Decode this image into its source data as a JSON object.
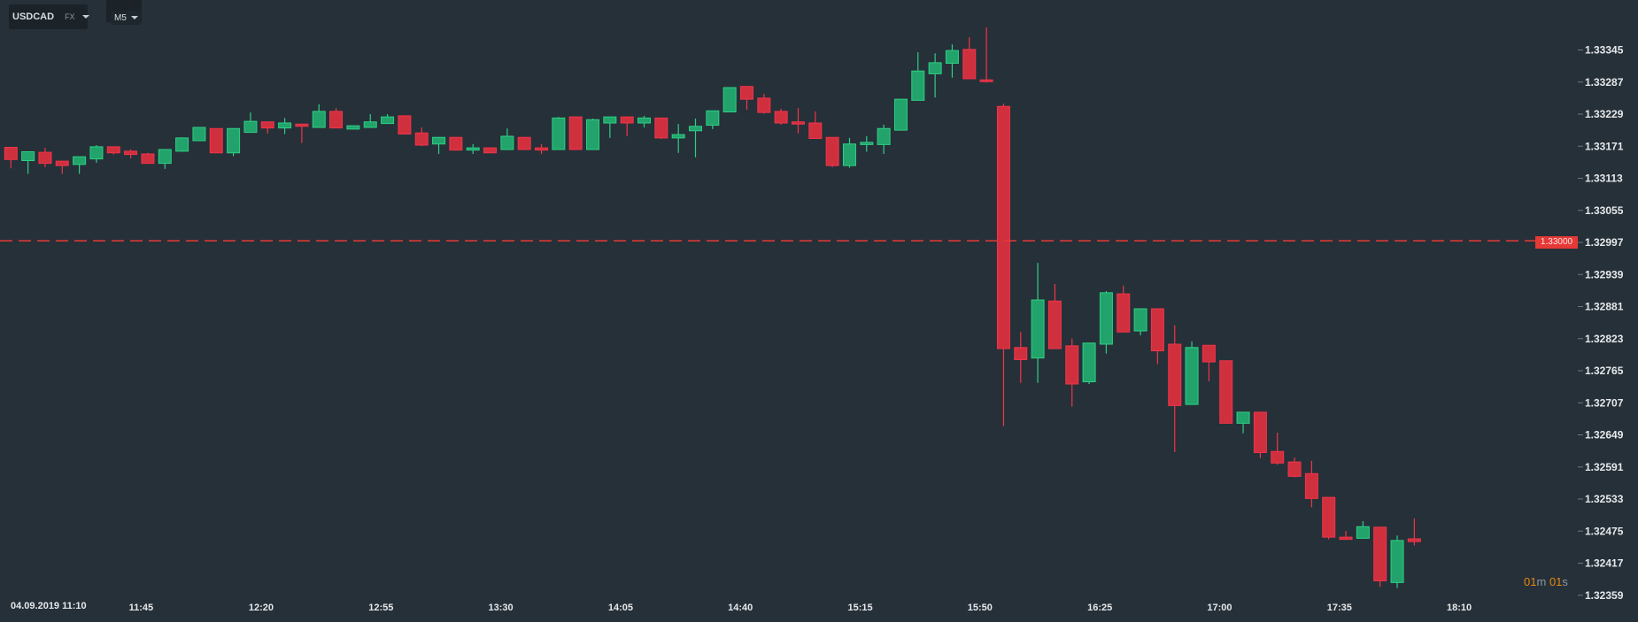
{
  "toolbar": {
    "symbol": "USDCAD",
    "symbol_type": "FX",
    "timeframe": "M5"
  },
  "current_price_tag": "1.33000",
  "timer": {
    "minutes": "01",
    "minutes_unit": "m",
    "seconds": "01",
    "seconds_unit": "s"
  },
  "date_label": "04.09.2019 11:10",
  "colors": {
    "background": "#263038",
    "up": "#22a36b",
    "down": "#d0303e",
    "price_line": "#e53935",
    "timer": "#e8890c"
  },
  "chart_data": {
    "type": "candlestick",
    "xlabel": "",
    "ylabel": "",
    "grid": false,
    "ylim": [
      1.3233,
      1.3343
    ],
    "yticks": [
      "1.33345",
      "1.33287",
      "1.33229",
      "1.33171",
      "1.33113",
      "1.33055",
      "1.32997",
      "1.32939",
      "1.32881",
      "1.32823",
      "1.32765",
      "1.32707",
      "1.32649",
      "1.32591",
      "1.32533",
      "1.32475",
      "1.32417",
      "1.32359"
    ],
    "xticks": [
      {
        "time": "11:45",
        "label": "11:45"
      },
      {
        "time": "12:20",
        "label": "12:20"
      },
      {
        "time": "12:55",
        "label": "12:55"
      },
      {
        "time": "13:30",
        "label": "13:30"
      },
      {
        "time": "14:05",
        "label": "14:05"
      },
      {
        "time": "14:40",
        "label": "14:40"
      },
      {
        "time": "15:15",
        "label": "15:15"
      },
      {
        "time": "15:50",
        "label": "15:50"
      },
      {
        "time": "16:25",
        "label": "16:25"
      },
      {
        "time": "17:00",
        "label": "17:00"
      },
      {
        "time": "17:35",
        "label": "17:35"
      },
      {
        "time": "18:10",
        "label": "18:10"
      }
    ],
    "price_line": 1.33,
    "columns": [
      "time",
      "open",
      "high",
      "low",
      "close"
    ],
    "candles": [
      [
        "11:10",
        1.33169,
        1.33169,
        1.33131,
        1.33147
      ],
      [
        "11:15",
        1.33145,
        1.33161,
        1.33121,
        1.33161
      ],
      [
        "11:20",
        1.3316,
        1.33168,
        1.33133,
        1.3314
      ],
      [
        "11:25",
        1.33144,
        1.33144,
        1.33121,
        1.33136
      ],
      [
        "11:30",
        1.33138,
        1.33152,
        1.33121,
        1.33152
      ],
      [
        "11:35",
        1.33148,
        1.33173,
        1.33141,
        1.3317
      ],
      [
        "11:40",
        1.3317,
        1.3317,
        1.33156,
        1.33159
      ],
      [
        "11:45",
        1.33162,
        1.33165,
        1.33149,
        1.33156
      ],
      [
        "11:50",
        1.33157,
        1.33159,
        1.3314,
        1.3314
      ],
      [
        "11:55",
        1.3314,
        1.33166,
        1.3313,
        1.33165
      ],
      [
        "12:00",
        1.33162,
        1.33187,
        1.33161,
        1.33186
      ],
      [
        "12:05",
        1.33181,
        1.33205,
        1.33181,
        1.33205
      ],
      [
        "12:10",
        1.33203,
        1.33203,
        1.33159,
        1.33159
      ],
      [
        "12:15",
        1.33159,
        1.33203,
        1.33153,
        1.33203
      ],
      [
        "12:20",
        1.33196,
        1.33232,
        1.33196,
        1.33216
      ],
      [
        "12:25",
        1.33215,
        1.33215,
        1.33194,
        1.33204
      ],
      [
        "12:30",
        1.33204,
        1.33222,
        1.33193,
        1.33213
      ],
      [
        "12:35",
        1.33211,
        1.33211,
        1.33177,
        1.33207
      ],
      [
        "12:40",
        1.33205,
        1.33247,
        1.33205,
        1.33234
      ],
      [
        "12:45",
        1.33234,
        1.3324,
        1.33204,
        1.33204
      ],
      [
        "12:50",
        1.33202,
        1.33208,
        1.33201,
        1.33208
      ],
      [
        "12:55",
        1.33205,
        1.33229,
        1.33205,
        1.33215
      ],
      [
        "13:00",
        1.33212,
        1.33229,
        1.33212,
        1.33224
      ],
      [
        "13:05",
        1.33226,
        1.33226,
        1.33193,
        1.33193
      ],
      [
        "13:10",
        1.33195,
        1.33205,
        1.33171,
        1.33173
      ],
      [
        "13:15",
        1.33175,
        1.33187,
        1.33157,
        1.33187
      ],
      [
        "13:20",
        1.33187,
        1.33187,
        1.33164,
        1.33164
      ],
      [
        "13:25",
        1.33164,
        1.33175,
        1.33157,
        1.33168
      ],
      [
        "13:30",
        1.33168,
        1.33168,
        1.33159,
        1.33159
      ],
      [
        "13:35",
        1.33165,
        1.33203,
        1.33165,
        1.33189
      ],
      [
        "13:40",
        1.33187,
        1.33187,
        1.33165,
        1.33165
      ],
      [
        "13:45",
        1.33168,
        1.33175,
        1.33157,
        1.33164
      ],
      [
        "13:50",
        1.33165,
        1.33224,
        1.33165,
        1.33222
      ],
      [
        "13:55",
        1.33224,
        1.33224,
        1.33165,
        1.33165
      ],
      [
        "14:00",
        1.33165,
        1.33221,
        1.33165,
        1.33219
      ],
      [
        "14:05",
        1.33213,
        1.33224,
        1.33186,
        1.33224
      ],
      [
        "14:10",
        1.33224,
        1.33224,
        1.33189,
        1.33213
      ],
      [
        "14:15",
        1.33213,
        1.33226,
        1.33205,
        1.33222
      ],
      [
        "14:20",
        1.33222,
        1.33222,
        1.33184,
        1.33186
      ],
      [
        "14:25",
        1.33186,
        1.33211,
        1.33159,
        1.33192
      ],
      [
        "14:30",
        1.33199,
        1.33221,
        1.33151,
        1.33207
      ],
      [
        "14:35",
        1.33209,
        1.33235,
        1.33202,
        1.33235
      ],
      [
        "14:40",
        1.33233,
        1.33277,
        1.33233,
        1.33277
      ],
      [
        "14:45",
        1.33279,
        1.33279,
        1.33237,
        1.33256
      ],
      [
        "14:50",
        1.33258,
        1.33266,
        1.3323,
        1.33232
      ],
      [
        "14:55",
        1.33234,
        1.33239,
        1.3321,
        1.33213
      ],
      [
        "15:00",
        1.33215,
        1.3324,
        1.33194,
        1.33211
      ],
      [
        "15:05",
        1.33213,
        1.33234,
        1.33185,
        1.33185
      ],
      [
        "15:10",
        1.33187,
        1.33187,
        1.33133,
        1.33136
      ],
      [
        "15:15",
        1.33136,
        1.33186,
        1.33132,
        1.33175
      ],
      [
        "15:20",
        1.33174,
        1.33189,
        1.33161,
        1.33178
      ],
      [
        "15:25",
        1.33174,
        1.3321,
        1.33157,
        1.33203
      ],
      [
        "15:30",
        1.332,
        1.33256,
        1.332,
        1.33256
      ],
      [
        "15:35",
        1.33254,
        1.33341,
        1.33254,
        1.33307
      ],
      [
        "15:40",
        1.33302,
        1.33339,
        1.33259,
        1.33322
      ],
      [
        "15:45",
        1.33321,
        1.33355,
        1.33295,
        1.33344
      ],
      [
        "15:50",
        1.33346,
        1.33368,
        1.33293,
        1.33293
      ],
      [
        "15:55",
        1.33291,
        1.33386,
        1.33286,
        1.33288
      ],
      [
        "16:00",
        1.33243,
        1.33248,
        1.32665,
        1.32805
      ],
      [
        "16:05",
        1.32807,
        1.32835,
        1.32743,
        1.32785
      ],
      [
        "16:10",
        1.32788,
        1.3296,
        1.32743,
        1.32893
      ],
      [
        "16:15",
        1.32891,
        1.32922,
        1.32805,
        1.32805
      ],
      [
        "16:20",
        1.3281,
        1.32823,
        1.327,
        1.32741
      ],
      [
        "16:25",
        1.32745,
        1.32815,
        1.32741,
        1.32815
      ],
      [
        "16:30",
        1.32813,
        1.32909,
        1.32796,
        1.32906
      ],
      [
        "16:35",
        1.32904,
        1.32919,
        1.32835,
        1.32835
      ],
      [
        "16:40",
        1.32837,
        1.32877,
        1.32829,
        1.32877
      ],
      [
        "16:45",
        1.32877,
        1.32877,
        1.32777,
        1.32801
      ],
      [
        "16:50",
        1.32813,
        1.32847,
        1.32618,
        1.32702
      ],
      [
        "16:55",
        1.32704,
        1.32818,
        1.32704,
        1.32807
      ],
      [
        "17:00",
        1.32811,
        1.32811,
        1.32746,
        1.32781
      ],
      [
        "17:05",
        1.32783,
        1.32783,
        1.3267,
        1.3267
      ],
      [
        "17:10",
        1.3267,
        1.3269,
        1.32652,
        1.3269
      ],
      [
        "17:15",
        1.3269,
        1.3269,
        1.32607,
        1.32617
      ],
      [
        "17:20",
        1.32619,
        1.32653,
        1.32595,
        1.32598
      ],
      [
        "17:25",
        1.326,
        1.32608,
        1.32572,
        1.32574
      ],
      [
        "17:30",
        1.32579,
        1.32602,
        1.32518,
        1.32534
      ],
      [
        "17:35",
        1.32536,
        1.32536,
        1.3246,
        1.32464
      ],
      [
        "17:40",
        1.32464,
        1.32475,
        1.3246,
        1.3246
      ],
      [
        "17:45",
        1.32462,
        1.32493,
        1.32462,
        1.32483
      ],
      [
        "17:50",
        1.32482,
        1.32482,
        1.32374,
        1.32385
      ],
      [
        "17:55",
        1.32382,
        1.32467,
        1.32372,
        1.32458
      ],
      [
        "18:00",
        1.32461,
        1.32498,
        1.32449,
        1.32456
      ]
    ]
  }
}
